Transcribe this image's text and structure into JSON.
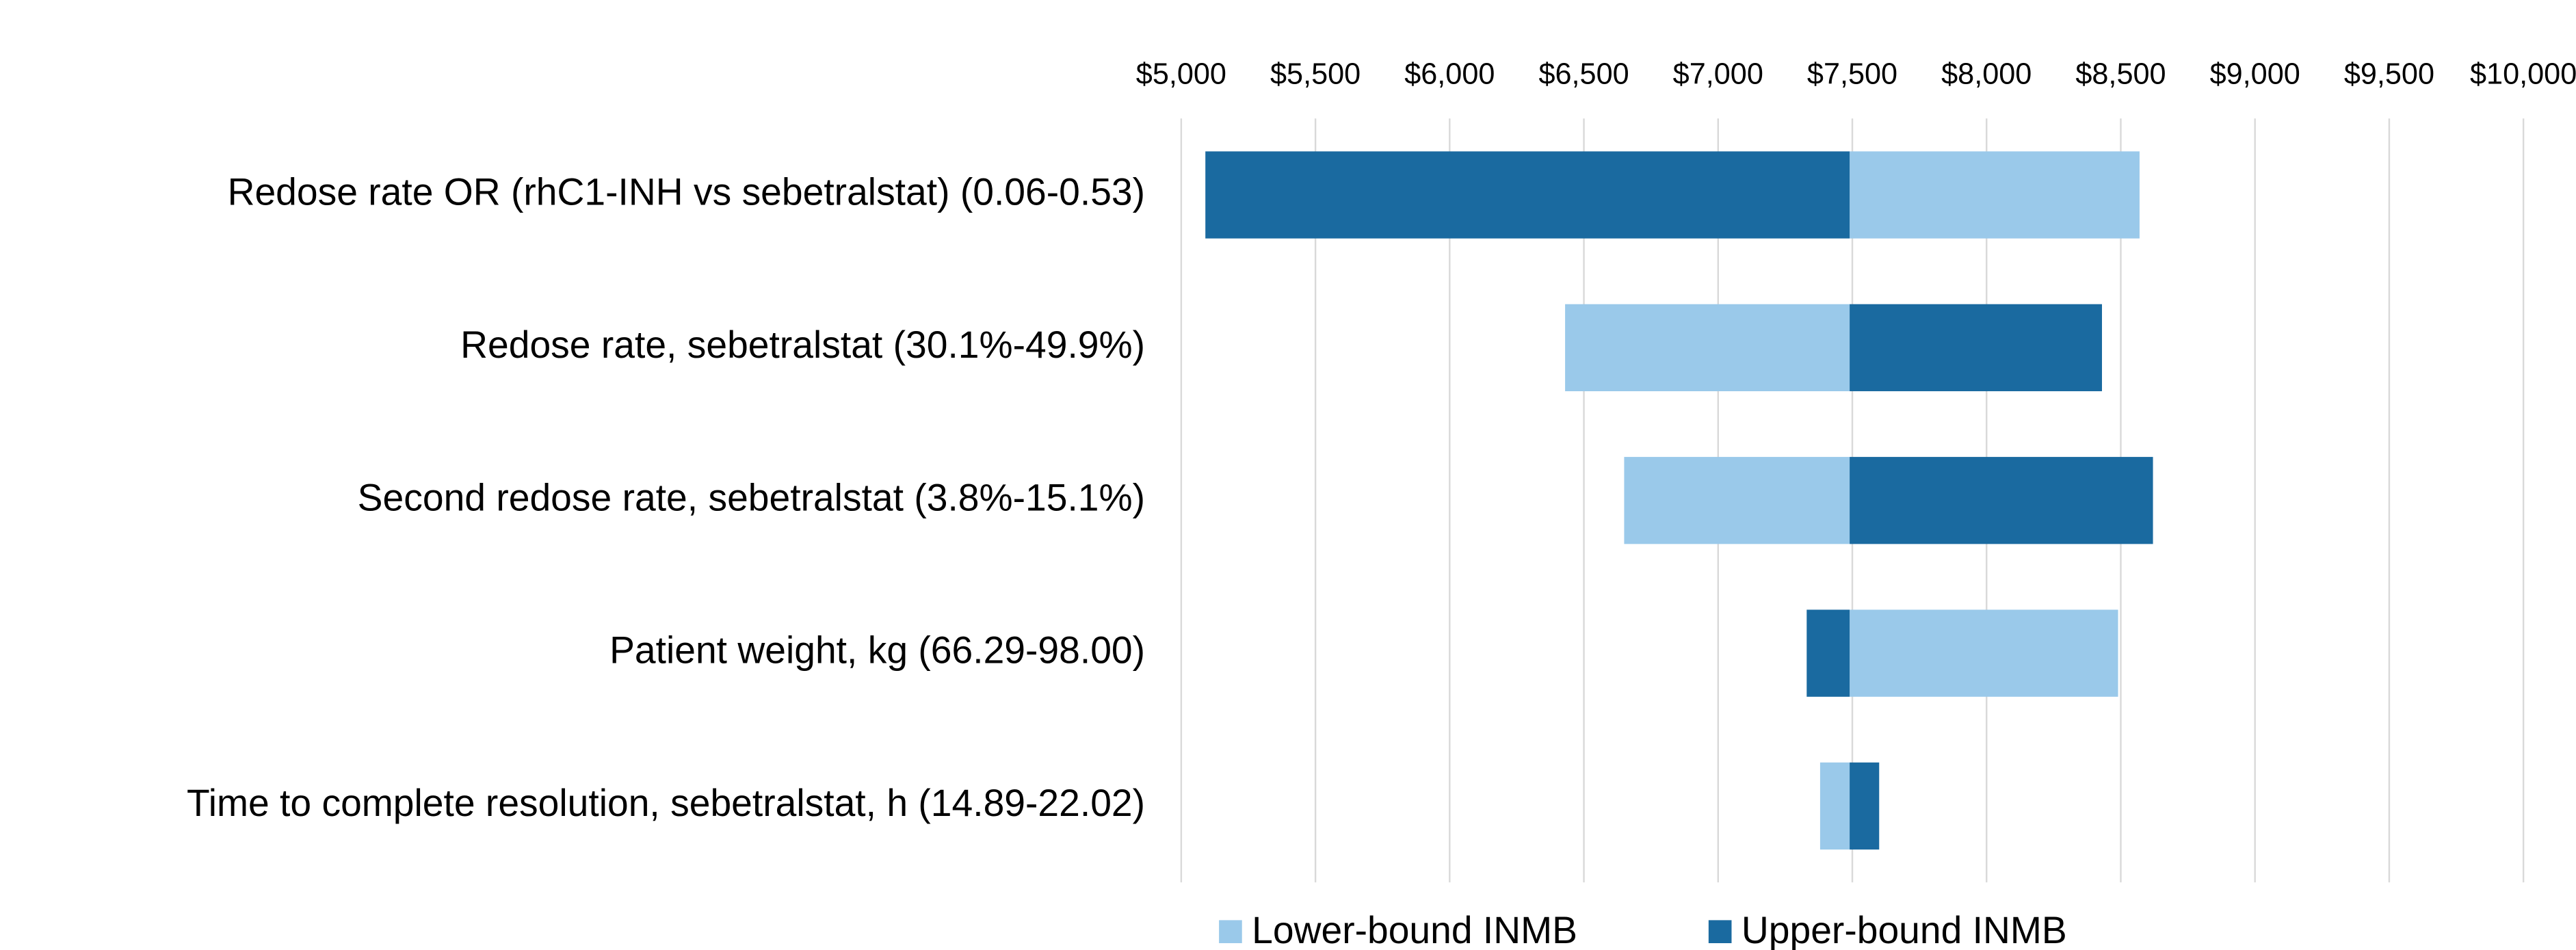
{
  "chart_data": {
    "type": "tornado",
    "categories": [
      "Redose rate OR (rhC1-INH vs sebetralstat) (0.06-0.53)",
      "Redose rate, sebetralstat (30.1%-49.9%)",
      "Second redose rate, sebetralstat (3.8%-15.1%)",
      "Patient weight, kg (66.29-98.00)",
      "Time to complete resolution, sebetralstat, h (14.89-22.02)"
    ],
    "base_value": 7490,
    "series": [
      {
        "name": "Lower-bound INMB",
        "color": "#9ac9ea",
        "values": [
          8570,
          6430,
          6650,
          8490,
          7380
        ]
      },
      {
        "name": "Upper-bound INMB",
        "color": "#1a6aa0",
        "values": [
          5090,
          8430,
          8620,
          7330,
          7600
        ]
      }
    ],
    "xlim": [
      5000,
      10000
    ],
    "xticks": [
      {
        "value": 5000,
        "label": "$5,000"
      },
      {
        "value": 5500,
        "label": "$5,500"
      },
      {
        "value": 6000,
        "label": "$6,000"
      },
      {
        "value": 6500,
        "label": "$6,500"
      },
      {
        "value": 7000,
        "label": "$7,000"
      },
      {
        "value": 7500,
        "label": "$7,500"
      },
      {
        "value": 8000,
        "label": "$8,000"
      },
      {
        "value": 8500,
        "label": "$8,500"
      },
      {
        "value": 9000,
        "label": "$9,000"
      },
      {
        "value": 9500,
        "label": "$9,500"
      },
      {
        "value": 10000,
        "label": "$10,000"
      }
    ],
    "grid": true,
    "legend": "bottom"
  }
}
